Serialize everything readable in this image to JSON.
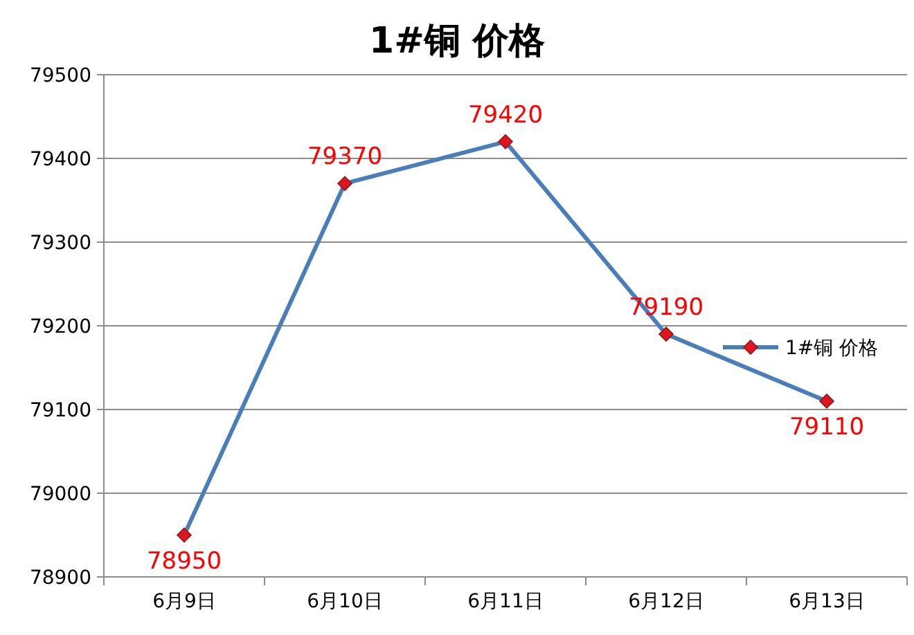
{
  "chart_data": {
    "type": "line",
    "title": "1#铜 价格",
    "categories": [
      "6月9日",
      "6月10日",
      "6月11日",
      "6月12日",
      "6月13日"
    ],
    "series": [
      {
        "name": "1#铜 价格",
        "color": "#4a7ebb",
        "values": [
          78950,
          79370,
          79420,
          79190,
          79110
        ]
      }
    ],
    "ylim": [
      78900,
      79500
    ],
    "yticks": [
      78900,
      79000,
      79100,
      79200,
      79300,
      79400,
      79500
    ],
    "grid": "y",
    "legend": "right",
    "marker": "diamond",
    "data_labels": true
  }
}
